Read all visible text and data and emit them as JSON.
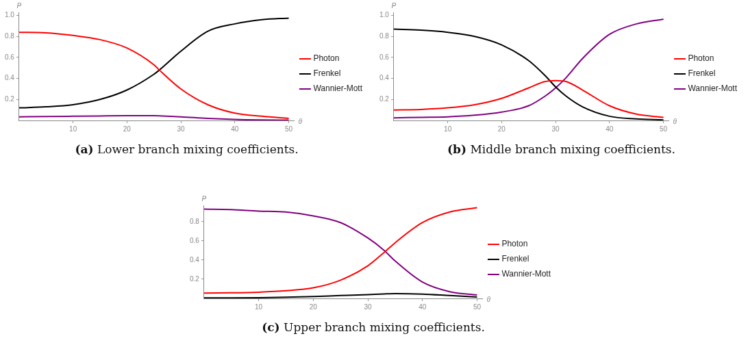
{
  "chart_data": [
    {
      "type": "line",
      "xlabel": "θ",
      "ylabel": "P",
      "annotations": [
        "(a) Lower branch mixing coefficients."
      ],
      "xlim": [
        0,
        51
      ],
      "ylim": [
        0,
        1.03
      ],
      "xticks": [
        10,
        20,
        30,
        40,
        50
      ],
      "yticks": [
        0.2,
        0.4,
        0.6,
        0.8,
        {
          "value": 1,
          "label": "1.0"
        }
      ],
      "legend": "right",
      "grid": false,
      "marker": "none",
      "line_style": "solid",
      "x": [
        0,
        5,
        10,
        15,
        20,
        25,
        26,
        30,
        35,
        40,
        45,
        50
      ],
      "series": [
        {
          "name": "Photon",
          "color": "#ff0000",
          "values": [
            0.84,
            0.835,
            0.81,
            0.77,
            0.69,
            0.53,
            0.48,
            0.3,
            0.15,
            0.07,
            0.04,
            0.02
          ]
        },
        {
          "name": "Frenkel",
          "color": "#000000",
          "values": [
            0.12,
            0.13,
            0.15,
            0.2,
            0.29,
            0.44,
            0.48,
            0.66,
            0.85,
            0.92,
            0.96,
            0.975
          ]
        },
        {
          "name": "Wannier-Mott",
          "color": "#800080",
          "values": [
            0.035,
            0.037,
            0.04,
            0.043,
            0.045,
            0.045,
            0.044,
            0.035,
            0.02,
            0.01,
            0.005,
            0.003
          ]
        }
      ]
    },
    {
      "type": "line",
      "xlabel": "θ",
      "ylabel": "P",
      "annotations": [
        "(b) Middle branch mixing coefficients."
      ],
      "xlim": [
        0,
        51
      ],
      "ylim": [
        0,
        1.03
      ],
      "xticks": [
        10,
        20,
        30,
        40,
        50
      ],
      "yticks": [
        0.2,
        0.4,
        0.6,
        0.8,
        {
          "value": 1,
          "label": "1.0"
        }
      ],
      "legend": "right",
      "grid": false,
      "marker": "none",
      "line_style": "solid",
      "x": [
        0,
        5,
        10,
        15,
        20,
        25,
        28,
        30,
        32,
        35,
        40,
        45,
        50
      ],
      "series": [
        {
          "name": "Photon",
          "color": "#ff0000",
          "values": [
            0.1,
            0.105,
            0.12,
            0.15,
            0.21,
            0.31,
            0.37,
            0.38,
            0.37,
            0.29,
            0.14,
            0.06,
            0.03
          ]
        },
        {
          "name": "Frenkel",
          "color": "#000000",
          "values": [
            0.87,
            0.86,
            0.84,
            0.8,
            0.72,
            0.57,
            0.43,
            0.32,
            0.23,
            0.13,
            0.04,
            0.015,
            0.005
          ]
        },
        {
          "name": "Wannier-Mott",
          "color": "#800080",
          "values": [
            0.025,
            0.03,
            0.035,
            0.05,
            0.08,
            0.14,
            0.23,
            0.31,
            0.41,
            0.59,
            0.82,
            0.92,
            0.965
          ]
        }
      ]
    },
    {
      "type": "line",
      "xlabel": "θ",
      "ylabel": "P",
      "annotations": [
        "(c) Upper branch mixing coefficients."
      ],
      "xlim": [
        0,
        51
      ],
      "ylim": [
        0,
        0.97
      ],
      "xticks": [
        10,
        20,
        30,
        40,
        50
      ],
      "yticks": [
        0.2,
        0.4,
        0.6,
        0.8
      ],
      "legend": "right",
      "grid": false,
      "marker": "none",
      "line_style": "solid",
      "x": [
        0,
        5,
        10,
        15,
        20,
        25,
        30,
        33,
        35,
        40,
        45,
        50
      ],
      "series": [
        {
          "name": "Photon",
          "color": "#ff0000",
          "values": [
            0.055,
            0.058,
            0.065,
            0.08,
            0.11,
            0.19,
            0.34,
            0.48,
            0.58,
            0.79,
            0.9,
            0.945
          ]
        },
        {
          "name": "Frenkel",
          "color": "#000000",
          "values": [
            0.005,
            0.006,
            0.008,
            0.012,
            0.02,
            0.03,
            0.04,
            0.047,
            0.05,
            0.045,
            0.03,
            0.015
          ]
        },
        {
          "name": "Wannier-Mott",
          "color": "#800080",
          "values": [
            0.93,
            0.925,
            0.91,
            0.9,
            0.86,
            0.79,
            0.63,
            0.5,
            0.39,
            0.17,
            0.07,
            0.035
          ]
        }
      ]
    }
  ]
}
